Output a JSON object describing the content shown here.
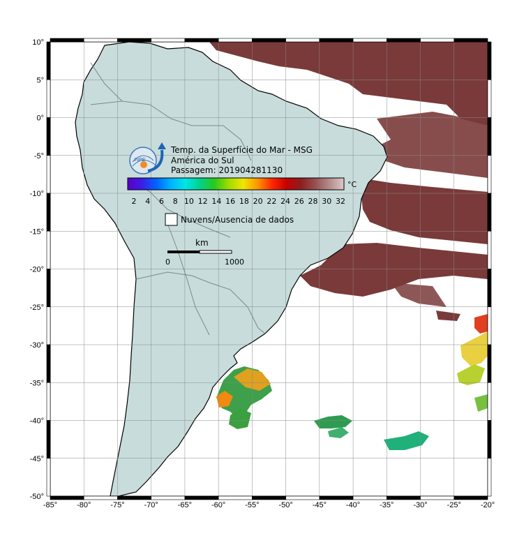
{
  "map": {
    "title_line1": "Temp. da Superfície do Mar - MSG",
    "title_line2": "América do Sul",
    "title_line3": "Passagem: 201904281130",
    "logo_text": "INPE",
    "colorbar": {
      "unit": "°C",
      "ticks": [
        "2",
        "4",
        "6",
        "8",
        "10",
        "12",
        "14",
        "16",
        "18",
        "20",
        "22",
        "24",
        "26",
        "28",
        "30",
        "32"
      ],
      "stops": [
        "#5a00c8",
        "#3a1ee6",
        "#0064ff",
        "#00b4ff",
        "#00e6e6",
        "#00d28c",
        "#28c81e",
        "#a0dc00",
        "#f0e600",
        "#ff9600",
        "#ff2800",
        "#c80000",
        "#8c1e1e",
        "#965050",
        "#b48c8c",
        "#dcc8c8"
      ]
    },
    "no_data_label": "Nuvens/Ausencia de dados",
    "scale_bar": {
      "unit": "km",
      "start": "0",
      "end": "1000"
    },
    "lon_ticks": [
      "-85°",
      "-80°",
      "-75°",
      "-70°",
      "-65°",
      "-60°",
      "-55°",
      "-50°",
      "-45°",
      "-40°",
      "-35°",
      "-30°",
      "-25°",
      "-20°"
    ],
    "lat_ticks": [
      "10°",
      "5°",
      "0°",
      "-5°",
      "-10°",
      "-15°",
      "-20°",
      "-25°",
      "-30°",
      "-35°",
      "-40°",
      "-45°",
      "-50°"
    ],
    "colors": {
      "land": "#c8dcdc",
      "ocean": "#ffffff",
      "warm_sst": "#7a3a3a",
      "grid": "#888888"
    }
  }
}
